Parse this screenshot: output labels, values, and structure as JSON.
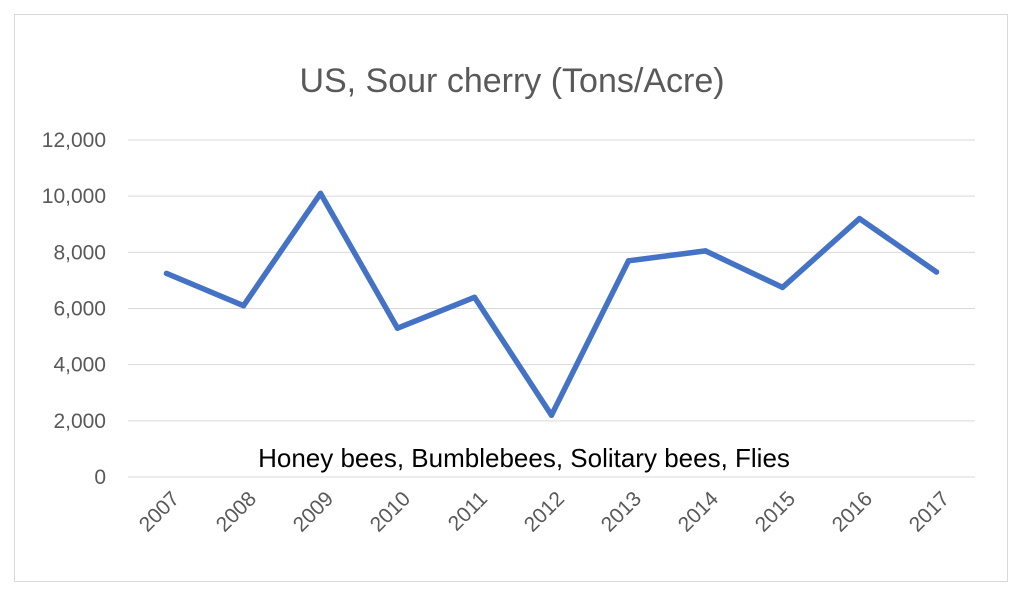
{
  "chart_data": {
    "type": "line",
    "title": "US, Sour cherry (Tons/Acre)",
    "xlabel": "",
    "ylabel": "",
    "categories": [
      "2007",
      "2008",
      "2009",
      "2010",
      "2011",
      "2012",
      "2013",
      "2014",
      "2015",
      "2016",
      "2017"
    ],
    "series": [
      {
        "values": [
          7250,
          6100,
          10100,
          5300,
          6400,
          2200,
          7700,
          8050,
          6750,
          9200,
          7300
        ]
      }
    ],
    "ylim": [
      0,
      12000
    ],
    "yticks": [
      0,
      2000,
      4000,
      6000,
      8000,
      10000,
      12000
    ],
    "ytick_labels": [
      "0",
      "2,000",
      "4,000",
      "6,000",
      "8,000",
      "10,000",
      "12,000"
    ],
    "grid": true,
    "legend": "none",
    "annotation": "Honey bees, Bumblebees, Solitary bees, Flies",
    "line_color": "#4472C4"
  }
}
